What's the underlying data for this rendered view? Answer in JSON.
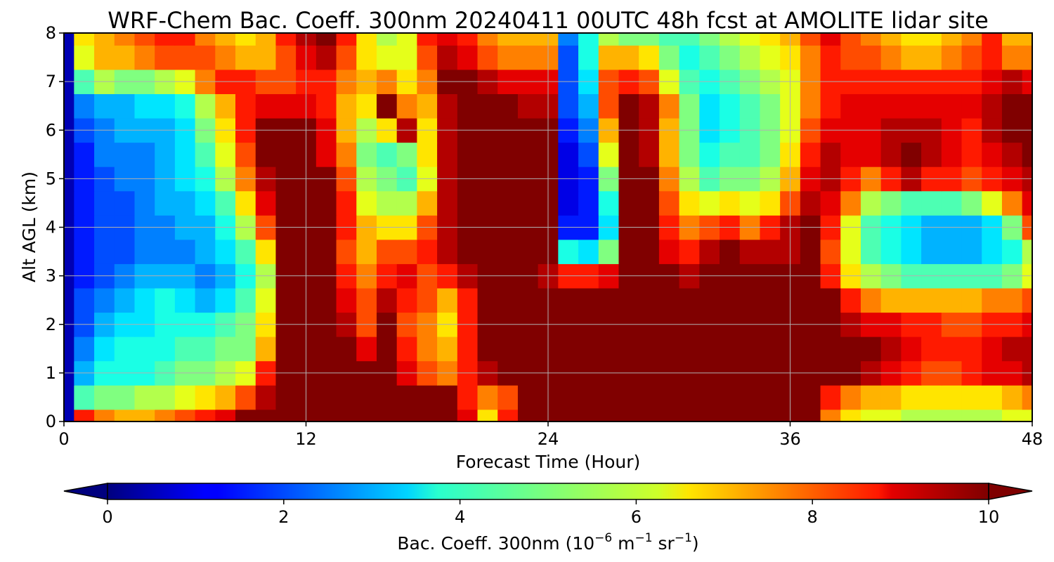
{
  "chart_data": {
    "type": "heatmap",
    "title": "WRF-Chem Bac. Coeff. 300nm  20240411 00UTC 48h fcst at AMOLITE lidar site",
    "xlabel": "Forecast Time (Hour)",
    "ylabel": "Alt AGL (km)",
    "xlim": [
      0,
      48
    ],
    "ylim": [
      0,
      8
    ],
    "xticks": [
      "0",
      "12",
      "24",
      "36",
      "48"
    ],
    "yticks": [
      "0",
      "1",
      "2",
      "3",
      "4",
      "5",
      "6",
      "7",
      "8"
    ],
    "grid": true,
    "colorbar": {
      "label_prefix": "Bac. Coeff. 300nm  (10",
      "exp1": "−6",
      "label_mid": " m",
      "exp2": "−1",
      "label_mid2": " sr",
      "exp3": "−1",
      "label_suffix": ")",
      "range": [
        0,
        10
      ],
      "ticks": [
        "0",
        "2",
        "4",
        "6",
        "8",
        "10"
      ],
      "colormap": "jet",
      "extend": "both"
    },
    "x": [
      0,
      1,
      2,
      3,
      4,
      5,
      6,
      7,
      8,
      9,
      10,
      11,
      12,
      13,
      14,
      15,
      16,
      17,
      18,
      19,
      20,
      21,
      22,
      23,
      24,
      25,
      26,
      27,
      28,
      29,
      30,
      31,
      32,
      33,
      34,
      35,
      36,
      37,
      38,
      39,
      40,
      41,
      42,
      43,
      44,
      45,
      46,
      47,
      48
    ],
    "y": [
      0,
      0.5,
      1,
      1.5,
      2,
      2.5,
      3,
      3.5,
      4,
      4.5,
      5,
      5.5,
      6,
      6.5,
      7,
      7.5,
      8
    ],
    "z": [
      [
        0.5,
        8.5,
        7.5,
        7,
        7,
        7.5,
        8,
        8.5,
        9,
        10,
        10,
        10,
        10,
        10,
        10,
        10,
        10,
        10,
        10,
        10,
        9,
        6.5,
        8.5,
        10,
        10,
        10,
        10,
        10,
        10,
        10,
        10,
        10,
        10,
        10,
        10,
        10,
        10,
        10,
        7.5,
        6.5,
        6,
        6,
        5.5,
        5.5,
        5.5,
        5.5,
        5.5,
        6,
        6
      ],
      [
        0.5,
        4.5,
        5,
        5,
        5.5,
        5.5,
        6,
        6.5,
        7,
        8,
        9.5,
        10,
        10,
        10,
        10,
        10,
        10,
        10,
        10,
        10,
        8.5,
        7.5,
        8,
        10,
        10,
        10,
        10,
        10,
        10,
        10,
        10,
        10,
        10,
        10,
        10,
        10,
        10,
        10,
        8.5,
        7.5,
        7,
        7,
        6.5,
        6.5,
        6.5,
        6.5,
        6.5,
        7,
        7.5
      ],
      [
        0.5,
        3,
        4,
        4,
        4,
        4.5,
        5,
        5,
        5.5,
        6,
        8.5,
        10,
        10,
        10,
        10,
        10,
        10,
        9,
        8,
        7.5,
        8.5,
        9.5,
        10,
        10,
        10,
        10,
        10,
        10,
        10,
        10,
        10,
        10,
        10,
        10,
        10,
        10,
        10,
        10,
        10,
        10,
        9.5,
        9,
        8.5,
        8,
        8,
        8.5,
        9,
        9,
        9.5
      ],
      [
        0.5,
        2.5,
        3.5,
        4,
        4,
        4,
        4.5,
        4.5,
        5,
        5,
        7,
        10,
        10,
        10,
        10,
        9,
        10,
        8.5,
        7.5,
        7,
        8.5,
        10,
        10,
        10,
        10,
        10,
        10,
        10,
        10,
        10,
        10,
        10,
        10,
        10,
        10,
        10,
        10,
        10,
        10,
        10,
        10,
        9.5,
        9,
        8.5,
        8.5,
        8.5,
        9,
        9.5,
        9.5
      ],
      [
        0.5,
        2,
        3,
        3.5,
        3.5,
        4,
        4,
        4,
        4.5,
        5,
        6.5,
        10,
        10,
        10,
        9.5,
        8,
        10,
        8,
        7.5,
        6.5,
        8.5,
        10,
        10,
        10,
        10,
        10,
        10,
        10,
        10,
        10,
        10,
        10,
        10,
        10,
        10,
        10,
        10,
        10,
        10,
        9.5,
        9,
        9,
        8.5,
        8.5,
        8,
        8,
        8.5,
        8.5,
        9
      ],
      [
        0.5,
        2,
        2.5,
        3,
        3.5,
        4,
        3.5,
        3,
        3.5,
        4.5,
        6,
        10,
        10,
        10,
        9,
        8,
        9.5,
        8.5,
        8,
        7,
        8.5,
        10,
        10,
        10,
        10,
        10,
        10,
        10,
        10,
        10,
        10,
        10,
        10,
        10,
        10,
        10,
        10,
        10,
        10,
        8.5,
        7.5,
        7,
        7,
        7,
        7,
        7,
        7.5,
        7.5,
        8
      ],
      [
        0.5,
        1.5,
        2,
        2.5,
        3,
        3,
        3,
        2.5,
        3,
        4,
        5.5,
        10,
        10,
        10,
        8.5,
        7.5,
        8.5,
        9,
        8,
        8.5,
        9.5,
        10,
        10,
        10,
        9.5,
        8.5,
        8.5,
        9,
        10,
        10,
        10,
        9.5,
        10,
        10,
        10,
        10,
        10,
        10,
        8.5,
        6.5,
        5.5,
        5,
        4.5,
        4.5,
        4.5,
        4.5,
        4.5,
        5,
        6
      ],
      [
        0.5,
        1.5,
        2,
        2,
        2.5,
        2.5,
        2.5,
        3,
        3.5,
        4.5,
        6.5,
        10,
        10,
        10,
        8,
        7,
        8,
        8,
        8.5,
        9.5,
        10,
        10,
        10,
        10,
        10,
        4,
        3.5,
        5,
        10,
        10,
        9,
        8.5,
        9.5,
        10,
        9.5,
        9.5,
        9.5,
        10,
        8,
        6,
        4.5,
        4,
        3.5,
        3,
        3,
        3,
        3.5,
        4,
        5.5
      ],
      [
        0.5,
        1.5,
        2,
        2,
        2.5,
        2.5,
        3,
        3,
        4,
        5.5,
        8,
        10,
        10,
        10,
        8.5,
        7,
        6.5,
        6.5,
        8,
        9.5,
        10,
        10,
        10,
        10,
        10,
        1.5,
        1.5,
        3.5,
        10,
        10,
        8.5,
        7.5,
        8,
        8.5,
        7.5,
        8.5,
        9.5,
        10,
        8.5,
        6,
        4.5,
        4,
        3.5,
        3,
        3,
        3,
        3.5,
        5,
        8
      ],
      [
        0.5,
        1.5,
        2,
        2,
        2.5,
        3,
        3,
        3.5,
        4.5,
        6.5,
        9,
        10,
        10,
        10,
        8.5,
        6,
        5.5,
        5.5,
        7,
        9.5,
        10,
        10,
        10,
        10,
        10,
        1,
        1.5,
        4,
        10,
        10,
        8,
        6.5,
        6,
        6.5,
        6,
        6.5,
        8,
        9.5,
        9,
        7.5,
        5.5,
        5,
        4.5,
        4.5,
        4.5,
        5,
        6,
        7.5,
        9
      ],
      [
        0.5,
        1.5,
        2,
        2.5,
        2.5,
        3,
        3.5,
        4,
        5.5,
        7.5,
        9.5,
        10,
        10,
        10,
        8,
        5.5,
        5,
        4.5,
        6,
        9.5,
        10,
        10,
        10,
        10,
        10,
        1,
        1.5,
        5,
        10,
        10,
        7.5,
        5.5,
        4.5,
        5,
        5,
        5.5,
        7,
        9,
        9.5,
        8.5,
        7.5,
        8.5,
        9.5,
        8.5,
        8.5,
        8,
        8.5,
        9,
        9.5
      ],
      [
        0.5,
        1.5,
        2.5,
        2.5,
        2.5,
        3,
        3.5,
        4.5,
        6,
        8,
        10,
        10,
        10,
        9,
        7.5,
        5,
        4.5,
        5,
        6.5,
        9.5,
        10,
        10,
        10,
        10,
        10,
        1,
        2,
        6,
        10,
        9.5,
        7,
        5,
        4,
        4.5,
        4.5,
        5,
        6.5,
        8.5,
        9.5,
        9,
        9,
        9.5,
        10,
        9.5,
        9,
        8.5,
        9,
        9.5,
        10
      ],
      [
        0.5,
        2,
        2.5,
        3,
        3,
        3,
        3.5,
        5,
        6.5,
        8.5,
        10,
        10,
        10,
        9,
        7,
        5.5,
        6.5,
        9.5,
        6.5,
        9.5,
        10,
        10,
        10,
        10,
        10,
        1.5,
        2.5,
        7,
        10,
        9.5,
        7,
        5,
        3.5,
        4,
        4.5,
        5,
        6,
        8,
        9,
        9,
        9,
        9.5,
        9.5,
        9.5,
        9,
        8.5,
        9.5,
        10,
        10
      ],
      [
        0.5,
        2.5,
        3,
        3,
        3.5,
        3.5,
        4,
        5.5,
        7,
        8.5,
        9,
        9,
        9,
        8.5,
        7,
        6.5,
        10,
        7.5,
        7,
        9.5,
        10,
        10,
        10,
        9.5,
        9.5,
        2,
        3,
        8,
        10,
        9.5,
        7.5,
        5,
        3.5,
        4,
        4.5,
        5,
        6,
        7.5,
        8.5,
        9,
        9,
        9,
        9,
        9,
        9,
        9,
        9.5,
        10,
        10
      ],
      [
        0.5,
        4.5,
        5.5,
        5,
        5,
        5.5,
        6,
        7.5,
        8.5,
        8.5,
        8,
        8,
        8.5,
        8.5,
        7.5,
        7,
        7.5,
        6.5,
        7.5,
        10,
        10,
        9.5,
        9,
        9,
        9,
        2,
        3.5,
        8,
        8.5,
        8,
        6,
        4.5,
        4,
        4.5,
        5,
        5.5,
        6,
        7.5,
        8.5,
        8.5,
        8.5,
        8.5,
        8.5,
        8.5,
        8.5,
        8.5,
        9,
        9.5,
        9
      ],
      [
        0.5,
        6,
        7,
        7,
        7.5,
        8,
        8,
        8,
        7.5,
        7,
        7,
        8,
        9,
        9.5,
        8,
        6.5,
        6,
        6,
        8,
        9.5,
        9,
        8,
        7.5,
        7.5,
        7.5,
        2,
        4,
        7,
        7,
        6.5,
        5,
        4,
        4.5,
        5,
        5.5,
        6,
        6.5,
        7.5,
        8.5,
        8,
        8,
        7.5,
        7,
        7,
        7.5,
        8,
        8.5,
        7.5,
        7.5
      ],
      [
        0.5,
        6.5,
        7,
        7.5,
        8,
        8.5,
        8.5,
        7.5,
        7,
        6.5,
        7,
        8.5,
        9.5,
        10,
        8.5,
        6.5,
        5.5,
        6,
        8.5,
        9,
        8.5,
        7.5,
        7,
        7,
        7,
        2.5,
        4,
        5.5,
        5,
        5,
        4.5,
        4.5,
        5,
        5.5,
        6,
        6.5,
        7,
        8,
        9,
        8,
        7.5,
        7,
        6.5,
        6.5,
        7,
        7.5,
        8.5,
        7,
        7
      ]
    ]
  }
}
